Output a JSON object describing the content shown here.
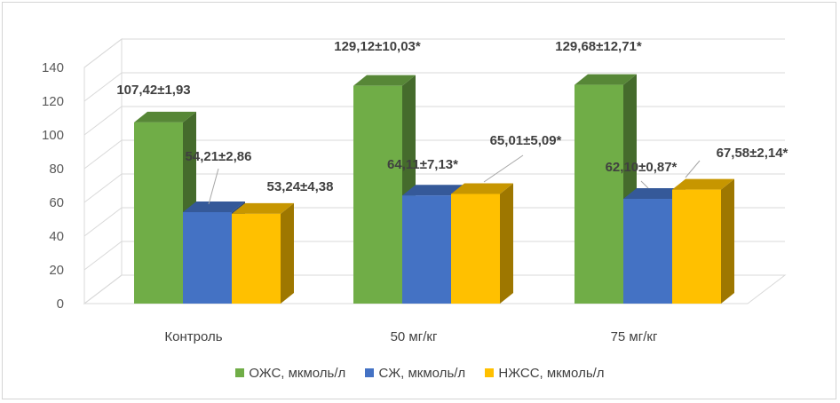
{
  "chart_data": {
    "type": "bar",
    "categories": [
      "Контроль",
      "50 мг/кг",
      "75 мг/кг"
    ],
    "series": [
      {
        "name": "ОЖС, мкмоль/л",
        "color": "#70ad47",
        "values": [
          107.42,
          129.12,
          129.68
        ],
        "labels": [
          "107,42±1,93",
          "129,12±10,03*",
          "129,68±12,71*"
        ]
      },
      {
        "name": "СЖ, мкмоль/л",
        "color": "#4472c4",
        "values": [
          54.21,
          64.11,
          62.1
        ],
        "labels": [
          "54,21±2,86",
          "64,11±7,13*",
          "62,10±0,87*"
        ]
      },
      {
        "name": "НЖСС, мкмоль/л",
        "color": "#ffc000",
        "values": [
          53.24,
          65.01,
          67.58
        ],
        "labels": [
          "53,24±4,38",
          "65,01±5,09*",
          "67,58±2,14*"
        ]
      }
    ],
    "yticks": [
      0,
      20,
      40,
      60,
      80,
      100,
      120,
      140
    ],
    "ylim": [
      0,
      140
    ],
    "grid": true,
    "legend_position": "bottom"
  }
}
